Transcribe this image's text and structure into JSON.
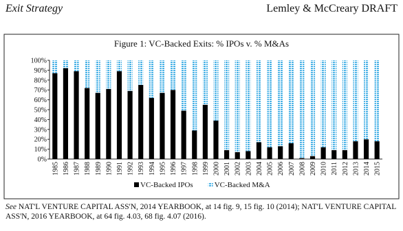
{
  "header": {
    "left": "Exit Strategy",
    "right": "Lemley & McCreary DRAFT"
  },
  "chart_data": {
    "type": "stacked_bar",
    "title": "Figure 1: VC-Backed Exits: % IPOs v. % M&As",
    "categories": [
      "1985",
      "1986",
      "1987",
      "1988",
      "1989",
      "1990",
      "1991",
      "1992",
      "1993",
      "1994",
      "1995",
      "1996",
      "1997",
      "1998",
      "1999",
      "2000",
      "2001",
      "2002",
      "2003",
      "2004",
      "2005",
      "2006",
      "2007",
      "2008",
      "2009",
      "2010",
      "2011",
      "2012",
      "2013",
      "2014",
      "2015"
    ],
    "series": [
      {
        "name": "VC-Backed IPOs",
        "color": "#000000",
        "values": [
          87,
          92,
          89,
          72,
          67,
          71,
          89,
          69,
          75,
          62,
          67,
          70,
          49,
          29,
          55,
          39,
          9,
          7,
          8,
          17,
          12,
          13,
          16,
          1,
          3,
          12,
          9,
          9,
          18,
          20,
          18
        ]
      },
      {
        "name": "VC-Backed M&A",
        "color": "#4db3e6",
        "values": [
          13,
          8,
          11,
          28,
          33,
          29,
          11,
          31,
          25,
          38,
          33,
          30,
          51,
          71,
          45,
          61,
          91,
          93,
          92,
          83,
          88,
          87,
          84,
          99,
          97,
          88,
          91,
          91,
          82,
          80,
          82
        ]
      }
    ],
    "ylim": [
      0,
      100
    ],
    "yticks": [
      {
        "value": 0,
        "label": "0%"
      },
      {
        "value": 10,
        "label": "10%"
      },
      {
        "value": 20,
        "label": "20%"
      },
      {
        "value": 30,
        "label": "30%"
      },
      {
        "value": 40,
        "label": "40%"
      },
      {
        "value": 50,
        "label": "50%"
      },
      {
        "value": 60,
        "label": "60%"
      },
      {
        "value": 70,
        "label": "70%"
      },
      {
        "value": 80,
        "label": "80%"
      },
      {
        "value": 90,
        "label": "90%"
      },
      {
        "value": 100,
        "label": "100%"
      }
    ],
    "grid": false,
    "legend": "bottom"
  },
  "caption": [
    "See",
    "NAT'L VENTURE CAPITAL ASS'N, 2014 YEARBOOK, at 14 fig. 9, 15 fig. 10 (2014); NAT'L VENTURE CAPITAL ASS'N, 2016 YEARBOOK, at 64 fig. 4.03, 68 fig. 4.07 (2016)."
  ]
}
